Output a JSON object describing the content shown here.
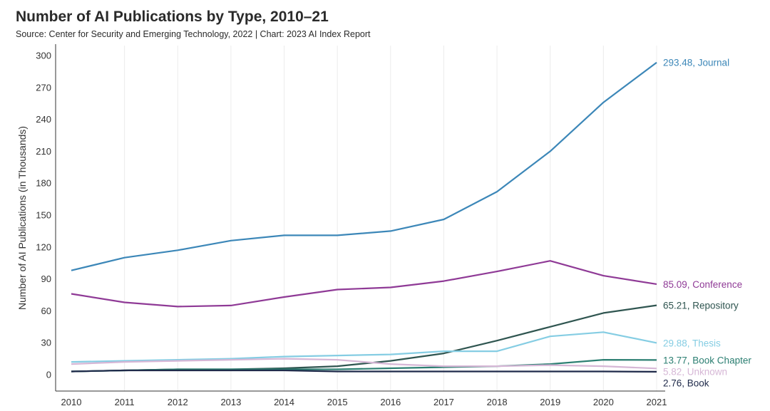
{
  "header": {
    "title": "Number of AI Publications by Type, 2010–21",
    "subtitle": "Source: Center for Security and Emerging Technology, 2022 | Chart: 2023 AI Index Report"
  },
  "chart_data": {
    "type": "line",
    "title": "Number of AI Publications by Type, 2010–21",
    "xlabel": "",
    "ylabel": "Number of AI Publications (in Thousands)",
    "x": [
      2010,
      2011,
      2012,
      2013,
      2014,
      2015,
      2016,
      2017,
      2018,
      2019,
      2020,
      2021
    ],
    "ylim": [
      0,
      300
    ],
    "yticks": [
      0,
      30,
      60,
      90,
      120,
      150,
      180,
      210,
      240,
      270,
      300
    ],
    "grid": "vertical",
    "legend": "end-of-line labels",
    "series": [
      {
        "name": "Journal",
        "color": "#3c87b8",
        "end_label": "293.48, Journal",
        "values": [
          98,
          110,
          117,
          126,
          131,
          131,
          135,
          146,
          172,
          210,
          256,
          293.48
        ]
      },
      {
        "name": "Conference",
        "color": "#8f3a96",
        "end_label": "85.09, Conference",
        "values": [
          76,
          68,
          64,
          65,
          73,
          80,
          82,
          88,
          97,
          107,
          93,
          85.09
        ]
      },
      {
        "name": "Repository",
        "color": "#2f5550",
        "end_label": "65.21, Repository",
        "values": [
          3,
          4,
          5,
          5,
          6,
          8,
          13,
          20,
          32,
          45,
          58,
          65.21
        ]
      },
      {
        "name": "Thesis",
        "color": "#85cde3",
        "end_label": "29.88, Thesis",
        "values": [
          12,
          13,
          14,
          15,
          17,
          18,
          19,
          22,
          22,
          36,
          40,
          29.88
        ]
      },
      {
        "name": "Book Chapter",
        "color": "#2c7f72",
        "end_label": "13.77, Book Chapter",
        "values": [
          3,
          4,
          5,
          5,
          5,
          5,
          6,
          7,
          8,
          10,
          14,
          13.77
        ]
      },
      {
        "name": "Unknown",
        "color": "#d6b7d6",
        "end_label": "5.82, Unknown",
        "values": [
          10,
          12,
          13,
          14,
          15,
          14,
          10,
          8,
          8,
          9,
          8,
          5.82
        ]
      },
      {
        "name": "Book",
        "color": "#1f2a4a",
        "end_label": "2.76, Book",
        "values": [
          3,
          4,
          4,
          4,
          4,
          3,
          3,
          3,
          3,
          3,
          3,
          2.76
        ]
      }
    ]
  }
}
